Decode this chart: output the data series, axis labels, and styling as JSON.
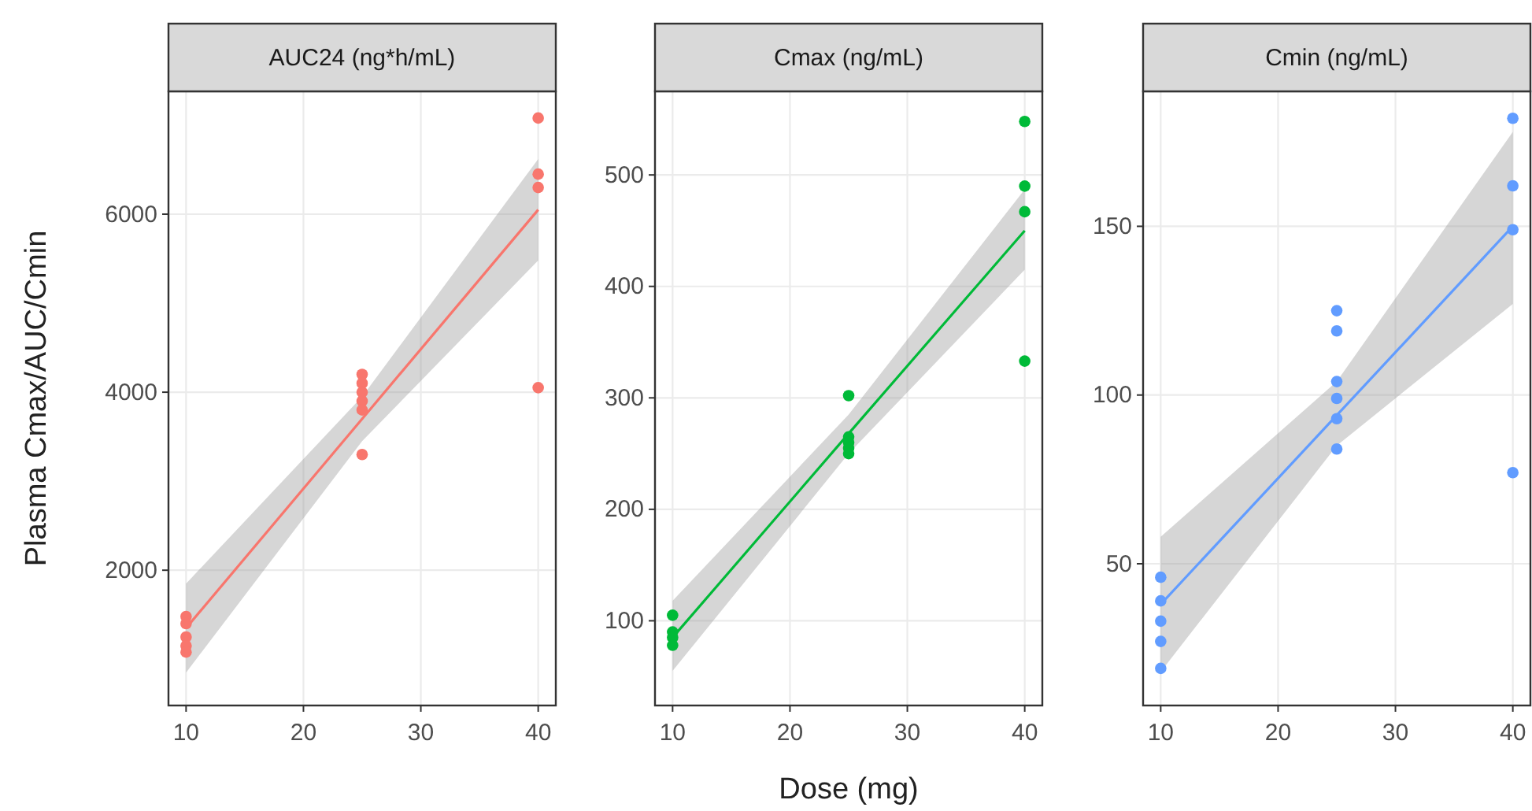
{
  "chart_data": [
    {
      "type": "scatter",
      "title": "AUC24 (ng*h/mL)",
      "ylabel": "Plasma Cmax/AUC/Cmin",
      "xlim": [
        8.5,
        41.5
      ],
      "xticks": [
        10,
        20,
        30,
        40
      ],
      "ylim": [
        480,
        7380
      ],
      "yticks": [
        2000,
        4000,
        6000
      ],
      "grid": true,
      "series": [
        {
          "color": "#f8766d",
          "marker": "circle",
          "x": [
            10,
            10,
            10,
            10,
            10,
            25,
            25,
            25,
            25,
            25,
            25,
            40,
            40,
            40,
            40
          ],
          "values": [
            1480,
            1400,
            1250,
            1150,
            1080,
            4200,
            4100,
            4000,
            3900,
            3800,
            3300,
            7080,
            6450,
            6300,
            4050
          ]
        },
        {
          "type": "line",
          "color": "#f8766d",
          "x": [
            10,
            25,
            40
          ],
          "values": [
            1350,
            3700,
            6050
          ],
          "lower": [
            850,
            3450,
            5480
          ],
          "upper": [
            1850,
            3950,
            6620
          ]
        }
      ]
    },
    {
      "type": "scatter",
      "title": "Cmax (ng/mL)",
      "xlabel": "Dose (mg)",
      "xlim": [
        8.5,
        41.5
      ],
      "xticks": [
        10,
        20,
        30,
        40
      ],
      "ylim": [
        24,
        575
      ],
      "yticks": [
        100,
        200,
        300,
        400,
        500
      ],
      "grid": true,
      "series": [
        {
          "color": "#00ba38",
          "marker": "circle",
          "x": [
            10,
            10,
            10,
            10,
            25,
            25,
            25,
            25,
            25,
            40,
            40,
            40,
            40
          ],
          "values": [
            105,
            90,
            85,
            78,
            302,
            265,
            260,
            255,
            250,
            548,
            490,
            467,
            333
          ]
        },
        {
          "type": "line",
          "color": "#00ba38",
          "x": [
            10,
            25,
            40
          ],
          "values": [
            85,
            268,
            450
          ],
          "lower": [
            55,
            250,
            415
          ],
          "upper": [
            118,
            285,
            487
          ]
        }
      ]
    },
    {
      "type": "scatter",
      "title": "Cmin (ng/mL)",
      "xlim": [
        8.5,
        41.5
      ],
      "xticks": [
        10,
        20,
        30,
        40
      ],
      "ylim": [
        8,
        190
      ],
      "yticks": [
        50,
        100,
        150
      ],
      "grid": true,
      "series": [
        {
          "color": "#619cff",
          "marker": "circle",
          "x": [
            10,
            10,
            10,
            10,
            10,
            25,
            25,
            25,
            25,
            25,
            25,
            40,
            40,
            40,
            40
          ],
          "values": [
            46,
            39,
            33,
            27,
            19,
            125,
            119,
            104,
            99,
            93,
            84,
            182,
            162,
            149,
            77
          ]
        },
        {
          "type": "line",
          "color": "#619cff",
          "x": [
            10,
            25,
            40
          ],
          "values": [
            38,
            94,
            150
          ],
          "lower": [
            18,
            85,
            127
          ],
          "upper": [
            58,
            104,
            178
          ]
        }
      ]
    }
  ]
}
